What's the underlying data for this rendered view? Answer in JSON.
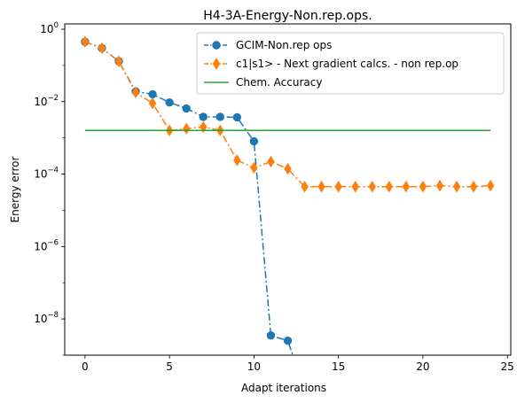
{
  "chart_data": {
    "type": "line",
    "title": "H4-3A-Energy-Non.rep.ops.",
    "xlabel": "Adapt iterations",
    "ylabel": "Energy error",
    "yscale": "log",
    "xlim": [
      -1.2,
      25.2
    ],
    "ylim": [
      1e-09,
      1.4
    ],
    "xticks": [
      0,
      5,
      10,
      15,
      20,
      25
    ],
    "yticks": [
      {
        "value": 1,
        "base": "10",
        "exp": "0"
      },
      {
        "value": 0.01,
        "base": "10",
        "exp": "−2"
      },
      {
        "value": 0.0001,
        "base": "10",
        "exp": "−4"
      },
      {
        "value": 1e-06,
        "base": "10",
        "exp": "−6"
      },
      {
        "value": 1e-08,
        "base": "10",
        "exp": "−8"
      }
    ],
    "legend_position": "upper-right",
    "series": [
      {
        "name": "GCIM-Non.rep ops",
        "color": "#1f77b4",
        "marker": "circle",
        "linestyle": "dashdot",
        "x": [
          0,
          1,
          2,
          3,
          4,
          5,
          6,
          7,
          8,
          9,
          10,
          11,
          12,
          12.3
        ],
        "y": [
          0.45,
          0.3,
          0.13,
          0.019,
          0.016,
          0.0095,
          0.0065,
          0.0038,
          0.0038,
          0.0037,
          0.0008,
          3.5e-09,
          2.5e-09,
          1e-09
        ]
      },
      {
        "name": "c1|s1> - Next gradient calcs. - non rep.op",
        "color": "#ff7f0e",
        "marker": "thin_diamond",
        "linestyle": "dashdot",
        "x": [
          0,
          1,
          2,
          3,
          4,
          5,
          6,
          7,
          8,
          9,
          10,
          11,
          12,
          13,
          14,
          15,
          16,
          17,
          18,
          19,
          20,
          21,
          22,
          23,
          24
        ],
        "y": [
          0.45,
          0.3,
          0.13,
          0.018,
          0.009,
          0.0016,
          0.0018,
          0.002,
          0.0016,
          0.00024,
          0.00015,
          0.00022,
          0.00014,
          4.5e-05,
          4.5e-05,
          4.5e-05,
          4.5e-05,
          4.5e-05,
          4.5e-05,
          4.5e-05,
          4.5e-05,
          4.8e-05,
          4.5e-05,
          4.5e-05,
          4.8e-05
        ]
      },
      {
        "name": "Chem. Accuracy",
        "color": "#2ca02c",
        "marker": "none",
        "linestyle": "solid",
        "x": [
          0,
          24
        ],
        "y": [
          0.0016,
          0.0016
        ]
      }
    ]
  }
}
